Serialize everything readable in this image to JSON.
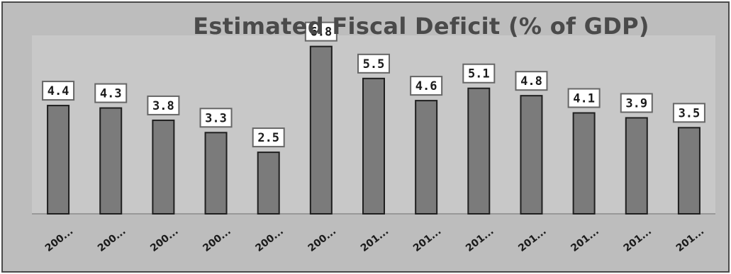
{
  "chart_data": {
    "type": "bar",
    "title": "Estimated Fiscal Deficit (% of GDP)",
    "xlabel": "",
    "ylabel": "",
    "categories": [
      "200...",
      "200...",
      "200...",
      "200...",
      "200...",
      "200...",
      "201...",
      "201...",
      "201...",
      "201...",
      "201...",
      "201...",
      "201..."
    ],
    "values": [
      4.4,
      4.3,
      3.8,
      3.3,
      2.5,
      6.8,
      5.5,
      4.6,
      5.1,
      4.8,
      4.1,
      3.9,
      3.5
    ],
    "data_labels": [
      "4.4",
      "4.3",
      "3.8",
      "3.3",
      "2.5",
      "6.8",
      "5.5",
      "4.6",
      "5.1",
      "4.8",
      "4.1",
      "3.9",
      "3.5"
    ],
    "ylim": [
      0,
      7.25
    ],
    "grid": false,
    "legend": "none",
    "colors": {
      "bar_fill": "#7b7b7b",
      "bar_stroke": "#1f1f1f",
      "plot_background": "#c8c8c8",
      "chart_background": "#bdbdbd",
      "label_box_fill": "#ffffff",
      "label_box_stroke": "#666666"
    }
  }
}
